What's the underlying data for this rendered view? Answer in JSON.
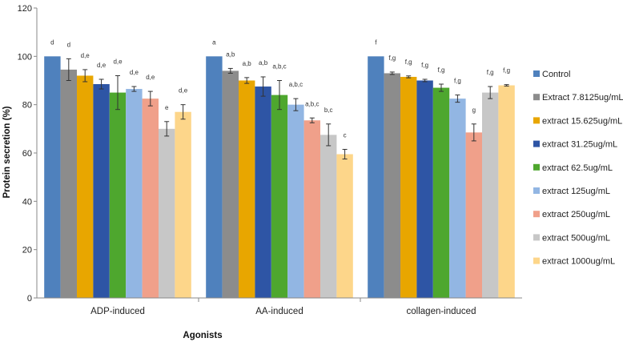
{
  "chart_data": {
    "type": "bar",
    "title": "",
    "xlabel": "Agonists",
    "ylabel": "Protein secretion (%)",
    "ylim": [
      0,
      120
    ],
    "yticks": [
      0,
      20,
      40,
      60,
      80,
      100,
      120
    ],
    "grid": false,
    "legend_position": "right",
    "categories": [
      "ADP-induced",
      "AA-induced",
      "collagen-induced"
    ],
    "series": [
      {
        "name": "Control",
        "color": "#4f81bd",
        "values": [
          100,
          100,
          100
        ],
        "errors": [
          0,
          0,
          0
        ],
        "labels": [
          "d",
          "a",
          "f"
        ]
      },
      {
        "name": "Extract 7.8125ug/mL",
        "color": "#8c8c8c",
        "values": [
          94.5,
          94,
          93
        ],
        "errors": [
          4.5,
          1,
          0.5
        ],
        "labels": [
          "d",
          "a,b",
          "f,g"
        ]
      },
      {
        "name": "extract 15.625ug/mL",
        "color": "#e8a600",
        "values": [
          92,
          90,
          91.5
        ],
        "errors": [
          2.5,
          1.2,
          0.4
        ],
        "labels": [
          "d,e",
          "a,b",
          "f,g"
        ]
      },
      {
        "name": "extract 31.25ug/mL",
        "color": "#2e55a5",
        "values": [
          88.5,
          87.5,
          90
        ],
        "errors": [
          2,
          4,
          0.5
        ],
        "labels": [
          "d,e",
          "a,b",
          "f,g"
        ]
      },
      {
        "name": "extract 62.5ug/mL",
        "color": "#4ea72e",
        "values": [
          85,
          84,
          87
        ],
        "errors": [
          7,
          6,
          1.5
        ],
        "labels": [
          "d,e",
          "a,b,c",
          "f,g"
        ]
      },
      {
        "name": "extract 125ug/mL",
        "color": "#92b6e3",
        "values": [
          86.5,
          80,
          82.5
        ],
        "errors": [
          1,
          2.5,
          1.5
        ],
        "labels": [
          "d,e",
          "a,b,c",
          "f,g"
        ]
      },
      {
        "name": "extract 250ug/mL",
        "color": "#f0a08a",
        "values": [
          82.5,
          73.5,
          68.5
        ],
        "errors": [
          3,
          1,
          3.5
        ],
        "labels": [
          "d,e",
          "a,b,c",
          "g"
        ]
      },
      {
        "name": "extract 500ug/mL",
        "color": "#c7c7c7",
        "values": [
          70,
          67.5,
          85
        ],
        "errors": [
          3,
          4.5,
          2.5
        ],
        "labels": [
          "e",
          "b,c",
          "f,g"
        ]
      },
      {
        "name": "extract 1000ug/mL",
        "color": "#fdd68a",
        "values": [
          77,
          59.5,
          88
        ],
        "errors": [
          3,
          2,
          0.3
        ],
        "labels": [
          "d,e",
          "c",
          "f,g"
        ]
      }
    ]
  }
}
